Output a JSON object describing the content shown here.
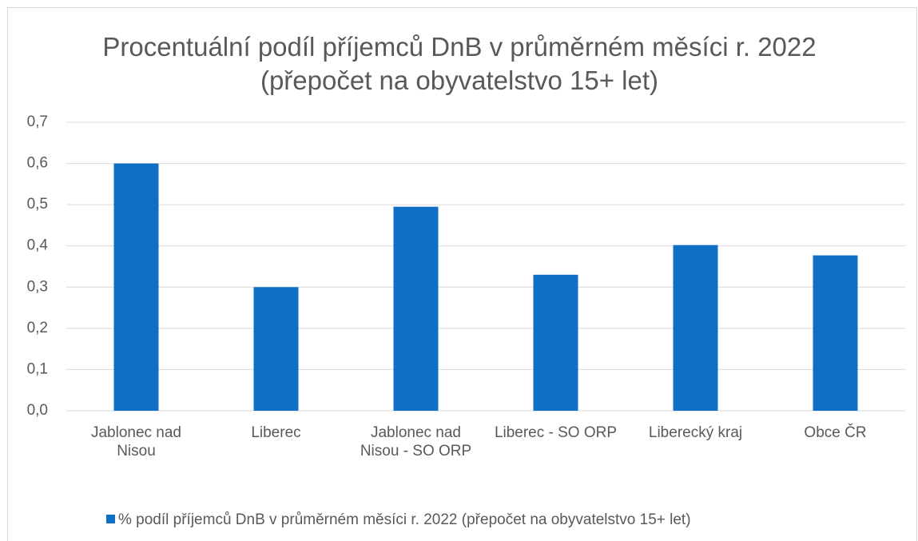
{
  "chart_data": {
    "type": "bar",
    "title": "Procentuální podíl příjemců DnB v průměrném měsíci r. 2022 (přepočet na obyvatelstvo 15+ let)",
    "categories": [
      "Jablonec nad Nisou",
      "Liberec",
      "Jablonec nad Nisou - SO ORP",
      "Liberec - SO ORP",
      "Liberecký kraj",
      "Obce ČR"
    ],
    "series": [
      {
        "name": "% podíl příjemců DnB v průměrném měsíci r. 2022 (přepočet na obyvatelstvo 15+ let)",
        "color": "#0f6fc6",
        "values": [
          0.6,
          0.3,
          0.495,
          0.33,
          0.402,
          0.377
        ]
      }
    ],
    "ylim": [
      0,
      0.7
    ],
    "yticks": [
      {
        "value": 0,
        "label": "0,0"
      },
      {
        "value": 0.1,
        "label": "0,1"
      },
      {
        "value": 0.2,
        "label": "0,2"
      },
      {
        "value": 0.3,
        "label": "0,3"
      },
      {
        "value": 0.4,
        "label": "0,4"
      },
      {
        "value": 0.5,
        "label": "0,5"
      },
      {
        "value": 0.6,
        "label": "0,6"
      },
      {
        "value": 0.7,
        "label": "0,7"
      }
    ],
    "grid": true,
    "legend": "bottom"
  }
}
